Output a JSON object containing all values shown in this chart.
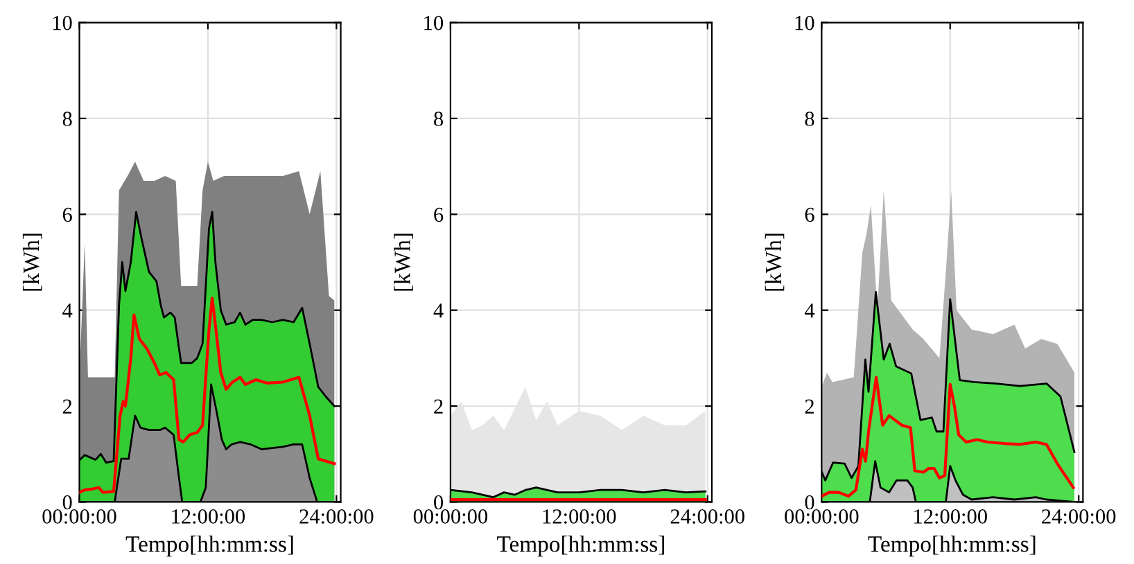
{
  "chart_data": [
    {
      "type": "line",
      "xlabel": "Tempo[hh:mm:ss]",
      "ylabel": "[kWh]",
      "xlim": [
        0,
        24.4
      ],
      "xticks": [
        {
          "value": 0,
          "label": "00:00:00"
        },
        {
          "value": 12,
          "label": "12:00:00"
        },
        {
          "value": 24,
          "label": "24:00:00"
        }
      ],
      "ylim": [
        0,
        10
      ],
      "yticks": [
        0,
        2,
        4,
        6,
        8,
        10
      ],
      "grid": true,
      "series": [
        {
          "type": "area",
          "color": "#808080",
          "x": [
            0,
            0.5,
            0.8,
            3.3,
            3.7,
            4.5,
            5.2,
            6,
            7,
            8,
            9,
            9.5,
            11,
            11.5,
            12,
            12.5,
            13.5,
            15,
            17,
            19,
            20.5,
            21.5,
            22.5,
            23.3,
            23.8
          ],
          "values": [
            2.6,
            5.4,
            2.6,
            2.6,
            6.5,
            6.8,
            7.1,
            6.7,
            6.7,
            6.8,
            6.7,
            4.5,
            4.5,
            6.5,
            7.1,
            6.7,
            6.8,
            6.8,
            6.8,
            6.8,
            6.9,
            6.0,
            6.9,
            4.3,
            4.2
          ]
        },
        {
          "type": "area",
          "color": "#33cc33",
          "line_style": "solid",
          "x": [
            0,
            0.5,
            1.0,
            1.5,
            2.0,
            2.5,
            3.2,
            3.7,
            4.0,
            4.3,
            4.8,
            5.3,
            5.8,
            6.5,
            7.2,
            7.6,
            7.9,
            8.5,
            8.9,
            9.3,
            9.5,
            10.5,
            11.0,
            11.5,
            12.1,
            12.4,
            12.7,
            13.2,
            13.7,
            14.5,
            15.0,
            15.5,
            16.2,
            17,
            18,
            19,
            20,
            20.8,
            21.5,
            22.3,
            23.0,
            23.8
          ],
          "values": [
            0.87,
            0.98,
            0.93,
            0.88,
            1.0,
            0.82,
            0.85,
            4.1,
            5.0,
            4.4,
            5.0,
            6.05,
            5.5,
            4.8,
            4.6,
            4.1,
            3.85,
            3.95,
            3.85,
            3.2,
            2.9,
            2.9,
            3.0,
            3.3,
            5.7,
            6.05,
            5.0,
            4.0,
            3.7,
            3.75,
            3.95,
            3.7,
            3.8,
            3.8,
            3.75,
            3.8,
            3.75,
            4.05,
            3.3,
            2.4,
            2.2,
            2.0
          ]
        },
        {
          "type": "area",
          "color": "#8c8c8c",
          "line_style": "solid",
          "x": [
            0,
            3.3,
            3.9,
            4.6,
            5.2,
            5.7,
            6.5,
            7.5,
            8,
            8.8,
            9.3,
            9.6,
            11.3,
            11.8,
            12.3,
            12.8,
            13.3,
            13.7,
            14.2,
            15,
            16,
            17,
            19,
            20,
            20.8,
            21.5,
            22.2,
            23.8
          ],
          "values": [
            0,
            0,
            0.9,
            0.9,
            1.8,
            1.55,
            1.5,
            1.5,
            1.55,
            1.4,
            0.5,
            0,
            0,
            0.3,
            2.45,
            1.9,
            1.3,
            1.1,
            1.2,
            1.25,
            1.2,
            1.1,
            1.15,
            1.2,
            1.2,
            0.5,
            0,
            0
          ]
        },
        {
          "type": "line",
          "color": "#ff0000",
          "x": [
            0,
            0.5,
            1.2,
            1.8,
            2.2,
            3.2,
            3.8,
            4.1,
            4.3,
            4.8,
            5.1,
            5.6,
            6.3,
            7,
            7.5,
            8.1,
            8.8,
            9.3,
            9.7,
            10.3,
            11.0,
            11.5,
            12.1,
            12.4,
            12.8,
            13.2,
            13.7,
            14.3,
            15.0,
            15.5,
            16.5,
            17.5,
            19,
            20.5,
            21.5,
            22.3,
            23.8
          ],
          "values": [
            0.2,
            0.25,
            0.27,
            0.3,
            0.2,
            0.22,
            1.8,
            2.1,
            2.0,
            3.0,
            3.9,
            3.4,
            3.2,
            2.9,
            2.65,
            2.7,
            2.55,
            1.3,
            1.25,
            1.4,
            1.45,
            1.6,
            3.6,
            4.25,
            3.5,
            2.7,
            2.35,
            2.5,
            2.6,
            2.45,
            2.55,
            2.48,
            2.5,
            2.6,
            1.8,
            0.9,
            0.8
          ]
        }
      ]
    },
    {
      "type": "line",
      "xlabel": "Tempo[hh:mm:ss]",
      "ylabel": "[kWh]",
      "xlim": [
        0,
        24.4
      ],
      "xticks": [
        {
          "value": 0,
          "label": "00:00:00"
        },
        {
          "value": 12,
          "label": "12:00:00"
        },
        {
          "value": 24,
          "label": "24:00:00"
        }
      ],
      "ylim": [
        0,
        10
      ],
      "yticks": [
        0,
        2,
        4,
        6,
        8,
        10
      ],
      "grid": true,
      "series": [
        {
          "type": "area",
          "color": "#e6e6e6",
          "x": [
            0,
            1,
            2,
            3,
            4,
            5,
            7,
            8,
            9,
            10,
            12,
            14,
            16,
            18,
            20,
            22,
            23.8
          ],
          "values": [
            1.8,
            2.1,
            1.5,
            1.6,
            1.8,
            1.5,
            2.4,
            1.7,
            2.1,
            1.6,
            1.9,
            1.8,
            1.5,
            1.8,
            1.6,
            1.6,
            1.9
          ]
        },
        {
          "type": "area",
          "color": "#4ddd4d",
          "line_style": "solid",
          "x": [
            0,
            2,
            3,
            4,
            5,
            6,
            7,
            8,
            10,
            12,
            14,
            16,
            18,
            20,
            22,
            23.8
          ],
          "values": [
            0.25,
            0.2,
            0.15,
            0.1,
            0.2,
            0.15,
            0.25,
            0.3,
            0.2,
            0.2,
            0.25,
            0.25,
            0.2,
            0.25,
            0.2,
            0.22
          ]
        },
        {
          "type": "line",
          "color": "#ff0000",
          "x": [
            0,
            23.8
          ],
          "values": [
            0.05,
            0.05
          ]
        }
      ]
    },
    {
      "type": "line",
      "xlabel": "Tempo[hh:mm:ss]",
      "ylabel": "[kWh]",
      "xlim": [
        0,
        24.4
      ],
      "xticks": [
        {
          "value": 0,
          "label": "00:00:00"
        },
        {
          "value": 12,
          "label": "12:00:00"
        },
        {
          "value": 24,
          "label": "24:00:00"
        }
      ],
      "ylim": [
        0,
        10
      ],
      "yticks": [
        0,
        2,
        4,
        6,
        8,
        10
      ],
      "grid": true,
      "series": [
        {
          "type": "area",
          "color": "#b3b3b3",
          "x": [
            0,
            0.5,
            1,
            3,
            3.8,
            4.2,
            4.6,
            5.2,
            5.8,
            6.5,
            7.5,
            8.5,
            9.5,
            11,
            11.6,
            12.1,
            12.6,
            14,
            16,
            18,
            19,
            20.5,
            22,
            23.6
          ],
          "values": [
            2.4,
            2.7,
            2.5,
            2.6,
            5.2,
            5.6,
            6.2,
            4.0,
            6.5,
            4.2,
            3.9,
            3.6,
            3.4,
            3.0,
            4.8,
            6.5,
            4.0,
            3.6,
            3.5,
            3.7,
            3.2,
            3.4,
            3.3,
            2.7
          ]
        },
        {
          "type": "area",
          "color": "#4ddd4d",
          "line_style": "solid",
          "x": [
            0,
            0.34,
            1.07,
            2.15,
            2.8,
            3.43,
            4.08,
            4.38,
            5.06,
            5.8,
            6.35,
            6.95,
            8.37,
            9.23,
            10.3,
            10.73,
            11.37,
            12.0,
            12.9,
            14.2,
            16.3,
            18.5,
            21.0,
            22.3,
            23.6
          ],
          "values": [
            0.63,
            0.45,
            0.82,
            0.8,
            0.5,
            0.75,
            2.97,
            2.3,
            4.38,
            2.97,
            3.3,
            2.83,
            2.68,
            1.71,
            1.76,
            1.47,
            1.47,
            4.23,
            2.54,
            2.5,
            2.47,
            2.42,
            2.47,
            2.2,
            1.04
          ]
        },
        {
          "type": "area",
          "color": "#c0c0c0",
          "line_style": "solid",
          "x": [
            0,
            4.5,
            5.0,
            5.5,
            6.3,
            7,
            8,
            8.5,
            8.8,
            11.6,
            12,
            12.5,
            13.2,
            14,
            16,
            18,
            20,
            21,
            23.6
          ],
          "values": [
            0,
            0,
            0.85,
            0.3,
            0.2,
            0.45,
            0.45,
            0.3,
            0,
            0,
            0.75,
            0.45,
            0.15,
            0.05,
            0.1,
            0.05,
            0.1,
            0.05,
            0
          ]
        },
        {
          "type": "line",
          "color": "#ff0000",
          "x": [
            0,
            0.7,
            1.6,
            2.5,
            3.2,
            3.8,
            4.1,
            4.4,
            5.1,
            5.7,
            6.3,
            7.5,
            8.3,
            8.7,
            9.5,
            10,
            10.5,
            11,
            11.5,
            12.0,
            12.4,
            12.8,
            13.5,
            14.5,
            15.5,
            17,
            18.5,
            20,
            21,
            22,
            23.5
          ],
          "values": [
            0.12,
            0.2,
            0.2,
            0.12,
            0.25,
            1.1,
            0.85,
            1.5,
            2.6,
            1.6,
            1.8,
            1.6,
            1.55,
            0.65,
            0.62,
            0.7,
            0.7,
            0.5,
            0.55,
            2.45,
            2.0,
            1.4,
            1.25,
            1.3,
            1.25,
            1.22,
            1.2,
            1.25,
            1.2,
            0.8,
            0.3
          ]
        }
      ]
    }
  ]
}
